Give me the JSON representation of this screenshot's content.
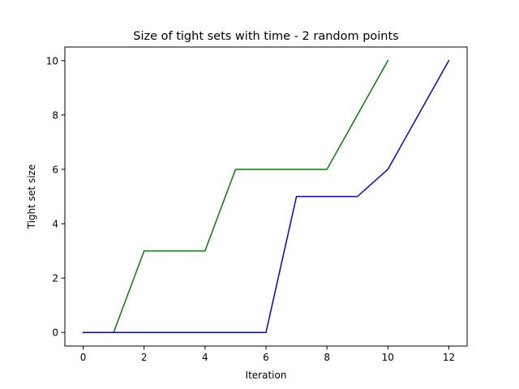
{
  "chart_data": {
    "type": "line",
    "title": "Size of tight sets with time - 2 random points",
    "xlabel": "Iteration",
    "ylabel": "Tight set size",
    "xlim": [
      -0.6,
      12.6
    ],
    "ylim": [
      -0.5,
      10.5
    ],
    "xticks": [
      0,
      2,
      4,
      6,
      8,
      10,
      12
    ],
    "yticks": [
      0,
      2,
      4,
      6,
      8,
      10
    ],
    "grid": false,
    "series": [
      {
        "color": "#008000",
        "x": [
          0,
          1,
          2,
          3,
          4,
          5,
          6,
          7,
          8,
          9,
          10
        ],
        "y": [
          0,
          0,
          3,
          3,
          3,
          6,
          6,
          6,
          6,
          8,
          10
        ]
      },
      {
        "color": "#0000ff",
        "x": [
          0,
          1,
          2,
          3,
          4,
          5,
          6,
          7,
          8,
          9,
          10,
          11,
          12
        ],
        "y": [
          0,
          0,
          0,
          0,
          0,
          0,
          0,
          5,
          5,
          5,
          6,
          8,
          10
        ]
      }
    ]
  }
}
